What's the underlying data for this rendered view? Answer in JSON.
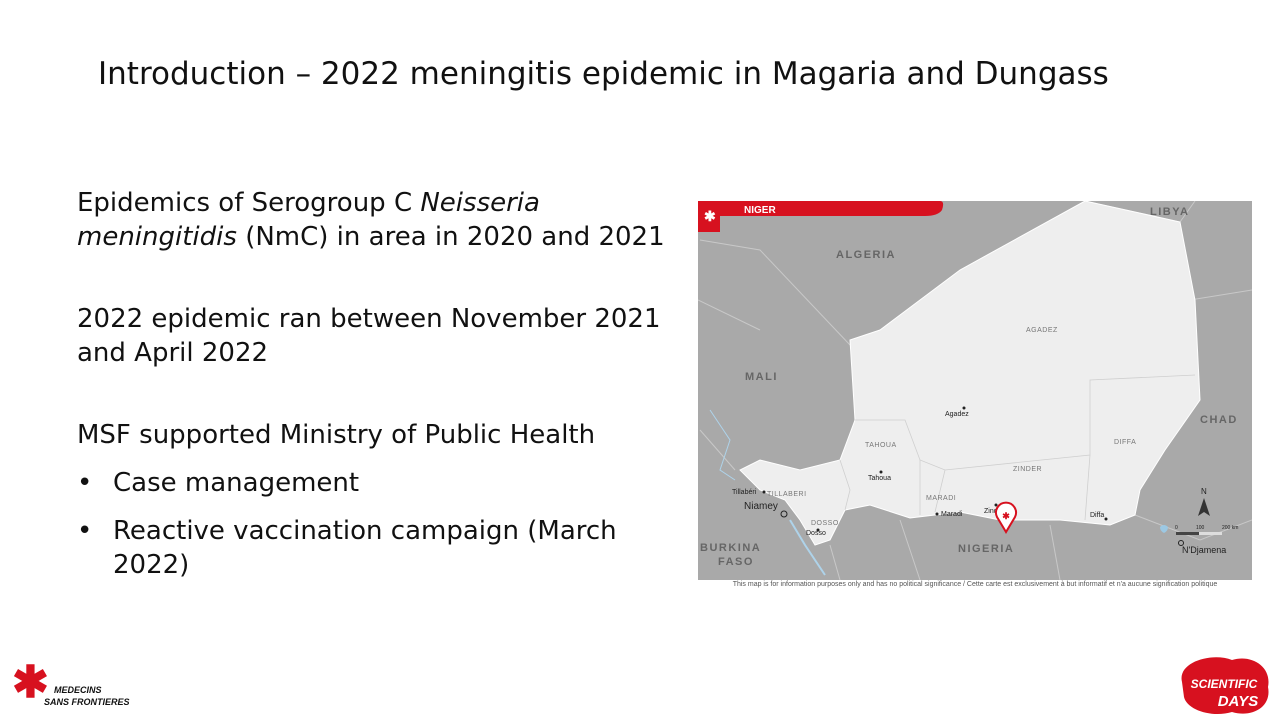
{
  "title": "Introduction – 2022 meningitis epidemic in Magaria and Dungass",
  "body": {
    "paragraphs": [
      {
        "runs": [
          {
            "text": "Epidemics of Serogroup C "
          },
          {
            "text": "Neisseria meningitidis",
            "italic": true
          },
          {
            "text": " (NmC) in area in 2020 and 2021"
          }
        ]
      },
      {
        "runs": [
          {
            "text": "2022 epidemic ran between November 2021 and April 2022"
          }
        ]
      },
      {
        "runs": [
          {
            "text": "MSF supported Ministry of Public Health"
          }
        ]
      }
    ],
    "bullets": [
      "Case management",
      "Reactive vaccination campaign (March 2022)"
    ]
  },
  "map": {
    "banner": "NIGER",
    "labels": [
      "LIBYA",
      "ALGERIA",
      "AGADEZ",
      "MALI",
      "Agadez",
      "TAHOUA",
      "Tahoua",
      "DIFFA",
      "CHAD",
      "ZINDER",
      "Tillabéri",
      "TILLABERI",
      "MARADI",
      "Niamey",
      "Maradi",
      "Zinder",
      "DOSSO",
      "Dosso",
      "Diffa",
      "BURKINA",
      "FASO",
      "NIGERIA",
      "N'Djamena",
      "N",
      "0",
      "100",
      "200 km"
    ],
    "disclaimer": "This map is for information purposes only and has no political significance / Cette carte est exclusivement à but informatif et n'a aucune signification politique"
  },
  "logos": {
    "msf": [
      "MEDECINS",
      "SANS FRONTIERES"
    ],
    "event": [
      "SCIENTIFIC",
      "DAYS"
    ]
  }
}
